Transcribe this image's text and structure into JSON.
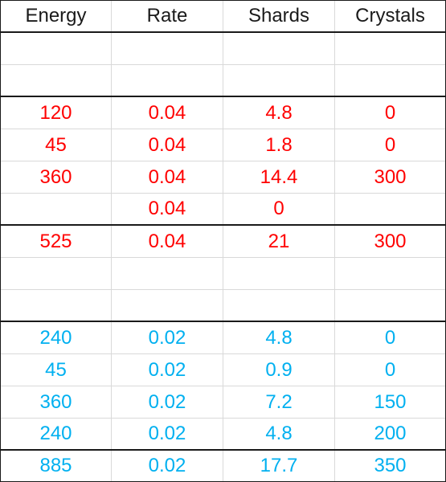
{
  "header": {
    "energy": "Energy",
    "rate": "Rate",
    "shards": "Shards",
    "crystals": "Crystals"
  },
  "colors": {
    "red_group": "#ff0000",
    "blue_group": "#00b0f0",
    "grid": "#d9d9d9",
    "border": "#1a1a1a"
  },
  "red_rows": [
    {
      "energy": "120",
      "rate": "0.04",
      "shards": "4.8",
      "crystals": "0"
    },
    {
      "energy": "45",
      "rate": "0.04",
      "shards": "1.8",
      "crystals": "0"
    },
    {
      "energy": "360",
      "rate": "0.04",
      "shards": "14.4",
      "crystals": "300"
    },
    {
      "energy": "",
      "rate": "0.04",
      "shards": "0",
      "crystals": ""
    }
  ],
  "red_total": {
    "energy": "525",
    "rate": "0.04",
    "shards": "21",
    "crystals": "300"
  },
  "blue_rows": [
    {
      "energy": "240",
      "rate": "0.02",
      "shards": "4.8",
      "crystals": "0"
    },
    {
      "energy": "45",
      "rate": "0.02",
      "shards": "0.9",
      "crystals": "0"
    },
    {
      "energy": "360",
      "rate": "0.02",
      "shards": "7.2",
      "crystals": "150"
    },
    {
      "energy": "240",
      "rate": "0.02",
      "shards": "4.8",
      "crystals": "200"
    }
  ],
  "blue_total": {
    "energy": "885",
    "rate": "0.02",
    "shards": "17.7",
    "crystals": "350"
  }
}
